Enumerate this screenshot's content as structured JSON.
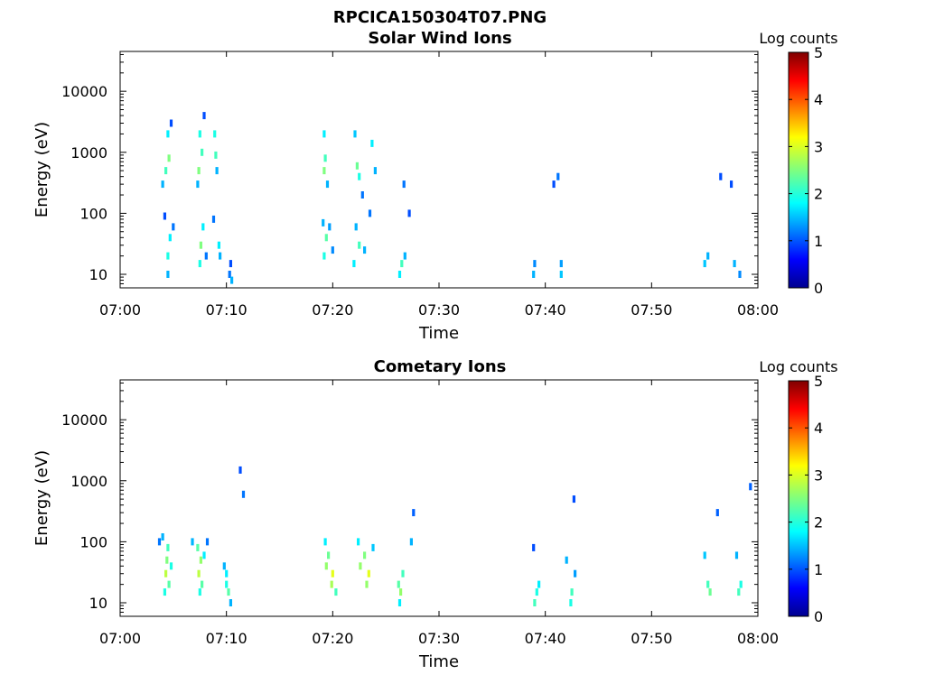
{
  "figure_title": "RPCICA150304T07.PNG",
  "chart_data": [
    {
      "type": "heatmap",
      "title": "Solar Wind Ions",
      "xlabel": "Time",
      "ylabel": "Energy (eV)",
      "x_ticks": [
        "07:00",
        "07:10",
        "07:20",
        "07:30",
        "07:40",
        "07:50",
        "08:00"
      ],
      "x_range_minutes": [
        0,
        60
      ],
      "y_scale": "log",
      "y_ticks": [
        "10",
        "100",
        "1000",
        "10000"
      ],
      "y_range": [
        6,
        45000
      ],
      "colorbar": {
        "label": "Log counts",
        "ticks": [
          "0",
          "1",
          "2",
          "3",
          "4",
          "5"
        ],
        "range": [
          0,
          5
        ],
        "colormap": "jet"
      },
      "grid": false,
      "cells": [
        [
          4.5,
          10,
          1.5
        ],
        [
          4.5,
          20,
          2
        ],
        [
          4.7,
          40,
          1.8
        ],
        [
          4.3,
          500,
          2.2
        ],
        [
          4.6,
          800,
          2.5
        ],
        [
          4.5,
          2000,
          1.8
        ],
        [
          4.0,
          300,
          1.5
        ],
        [
          4.8,
          3000,
          1
        ],
        [
          4.2,
          90,
          1
        ],
        [
          5.0,
          60,
          1.2
        ],
        [
          7.5,
          15,
          2
        ],
        [
          7.6,
          30,
          2.5
        ],
        [
          7.8,
          60,
          1.8
        ],
        [
          7.4,
          500,
          2.5
        ],
        [
          7.7,
          1000,
          2.2
        ],
        [
          7.5,
          2000,
          2
        ],
        [
          7.3,
          300,
          1.5
        ],
        [
          8.1,
          20,
          1.2
        ],
        [
          7.9,
          4000,
          1
        ],
        [
          8.9,
          2000,
          2
        ],
        [
          9.0,
          900,
          2.2
        ],
        [
          9.1,
          500,
          1.5
        ],
        [
          8.8,
          80,
          1.2
        ],
        [
          9.3,
          30,
          1.8
        ],
        [
          9.4,
          20,
          1.5
        ],
        [
          10.3,
          10,
          1.2
        ],
        [
          10.5,
          8,
          1.5
        ],
        [
          10.4,
          15,
          1
        ],
        [
          19.2,
          20,
          2
        ],
        [
          19.4,
          40,
          2.3
        ],
        [
          19.1,
          70,
          1.5
        ],
        [
          19.2,
          500,
          2.5
        ],
        [
          19.3,
          800,
          2.2
        ],
        [
          19.2,
          2000,
          1.8
        ],
        [
          19.5,
          300,
          1.5
        ],
        [
          20.0,
          25,
          1.3
        ],
        [
          19.7,
          60,
          1.4
        ],
        [
          22.0,
          15,
          1.8
        ],
        [
          22.5,
          30,
          2.2
        ],
        [
          22.2,
          60,
          1.5
        ],
        [
          22.3,
          600,
          2.4
        ],
        [
          22.5,
          400,
          2
        ],
        [
          22.1,
          2000,
          1.6
        ],
        [
          22.8,
          200,
          1.2
        ],
        [
          23.0,
          25,
          1.5
        ],
        [
          23.7,
          1400,
          1.8
        ],
        [
          24.0,
          500,
          1.5
        ],
        [
          23.5,
          100,
          1.2
        ],
        [
          26.3,
          10,
          1.8
        ],
        [
          26.5,
          15,
          2.2
        ],
        [
          26.8,
          20,
          1.5
        ],
        [
          26.7,
          300,
          1.2
        ],
        [
          27.2,
          100,
          1
        ],
        [
          38.9,
          10,
          1.5
        ],
        [
          39.0,
          15,
          1.3
        ],
        [
          41.5,
          15,
          1.4
        ],
        [
          41.5,
          10,
          1.6
        ],
        [
          40.8,
          300,
          1
        ],
        [
          41.2,
          400,
          1.2
        ],
        [
          55.0,
          15,
          1.6
        ],
        [
          55.3,
          20,
          1.5
        ],
        [
          57.8,
          15,
          1.5
        ],
        [
          58.3,
          10,
          1.3
        ],
        [
          56.5,
          400,
          1
        ],
        [
          57.5,
          300,
          1
        ]
      ]
    },
    {
      "type": "heatmap",
      "title": "Cometary Ions",
      "xlabel": "Time",
      "ylabel": "Energy (eV)",
      "x_ticks": [
        "07:00",
        "07:10",
        "07:20",
        "07:30",
        "07:40",
        "07:50",
        "08:00"
      ],
      "x_range_minutes": [
        0,
        60
      ],
      "y_scale": "log",
      "y_ticks": [
        "10",
        "100",
        "1000",
        "10000"
      ],
      "y_range": [
        6,
        45000
      ],
      "colorbar": {
        "label": "Log counts",
        "ticks": [
          "0",
          "1",
          "2",
          "3",
          "4",
          "5"
        ],
        "range": [
          0,
          5
        ],
        "colormap": "jet"
      },
      "grid": false,
      "cells": [
        [
          4.3,
          30,
          2.8
        ],
        [
          4.4,
          50,
          2.5
        ],
        [
          4.5,
          80,
          2.2
        ],
        [
          4.6,
          20,
          2.3
        ],
        [
          4.2,
          15,
          2
        ],
        [
          4.0,
          120,
          1.5
        ],
        [
          3.7,
          100,
          1.2
        ],
        [
          4.8,
          40,
          2
        ],
        [
          7.4,
          30,
          2.8
        ],
        [
          7.6,
          50,
          2.6
        ],
        [
          7.3,
          80,
          2.3
        ],
        [
          7.7,
          20,
          2.3
        ],
        [
          7.5,
          15,
          2
        ],
        [
          6.8,
          100,
          1.5
        ],
        [
          7.9,
          60,
          1.8
        ],
        [
          8.2,
          100,
          1.2
        ],
        [
          10.0,
          20,
          2
        ],
        [
          10.2,
          15,
          2.3
        ],
        [
          10.0,
          30,
          1.8
        ],
        [
          9.8,
          40,
          1.5
        ],
        [
          10.4,
          10,
          1.5
        ],
        [
          11.3,
          1500,
          1
        ],
        [
          11.6,
          600,
          1.2
        ],
        [
          19.4,
          40,
          2.6
        ],
        [
          19.6,
          60,
          2.4
        ],
        [
          20.0,
          30,
          3.0
        ],
        [
          19.9,
          20,
          2.7
        ],
        [
          19.3,
          100,
          1.8
        ],
        [
          20.3,
          15,
          2.2
        ],
        [
          22.6,
          40,
          2.6
        ],
        [
          23.0,
          60,
          2.5
        ],
        [
          23.4,
          30,
          3.0
        ],
        [
          23.2,
          20,
          2.6
        ],
        [
          22.4,
          100,
          1.8
        ],
        [
          23.8,
          80,
          1.6
        ],
        [
          26.2,
          20,
          2.3
        ],
        [
          26.4,
          15,
          2.6
        ],
        [
          26.6,
          30,
          2.2
        ],
        [
          26.3,
          10,
          1.8
        ],
        [
          27.4,
          100,
          1.5
        ],
        [
          27.6,
          300,
          1.1
        ],
        [
          39.2,
          15,
          2
        ],
        [
          39.0,
          10,
          2.2
        ],
        [
          39.4,
          20,
          1.8
        ],
        [
          38.9,
          80,
          1
        ],
        [
          42.5,
          15,
          2.2
        ],
        [
          42.4,
          10,
          2
        ],
        [
          42.0,
          50,
          1.5
        ],
        [
          42.8,
          30,
          1.4
        ],
        [
          42.7,
          500,
          1
        ],
        [
          55.3,
          20,
          2.2
        ],
        [
          55.5,
          15,
          2.4
        ],
        [
          55.0,
          60,
          1.6
        ],
        [
          56.2,
          300,
          1.1
        ],
        [
          58.2,
          15,
          2.2
        ],
        [
          58.4,
          20,
          2
        ],
        [
          58.0,
          60,
          1.5
        ],
        [
          59.3,
          800,
          1.1
        ]
      ]
    }
  ]
}
